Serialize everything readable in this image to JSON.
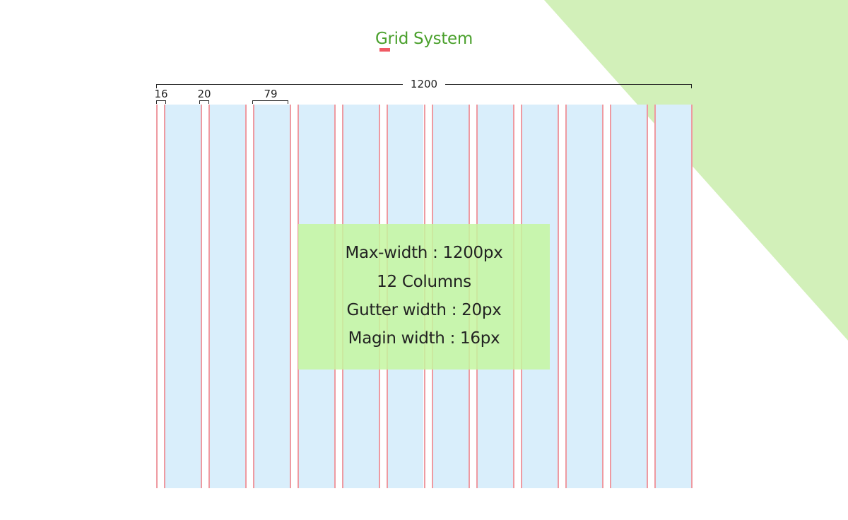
{
  "title": "Grid System",
  "dimensions": {
    "total_width_label": "1200",
    "margin_label": "16",
    "gutter_label": "20",
    "column_label": "79"
  },
  "grid": {
    "columns": 12
  },
  "info": {
    "max_width": "Max-width : 1200px",
    "columns": "12 Columns",
    "gutter": "Gutter width : 20px",
    "margin": "Magin width : 16px"
  },
  "colors": {
    "title": "#4aa02c",
    "accent": "#f05a64",
    "column_fill": "#d9eefb",
    "grid_line": "#ee9aa1",
    "info_fill": "#c4f6a0",
    "corner_triangle": "#cdeeb0"
  }
}
